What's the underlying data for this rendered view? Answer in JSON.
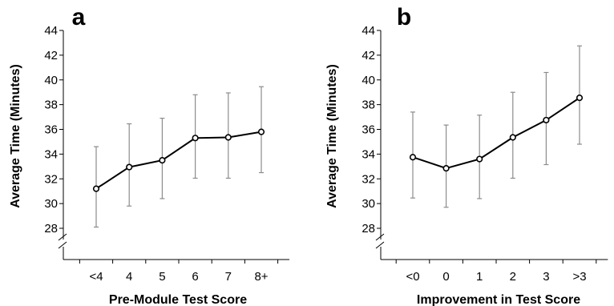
{
  "chart_data": [
    {
      "type": "line",
      "panel_label": "a",
      "categories": [
        "<4",
        "4",
        "5",
        "6",
        "7",
        "8+"
      ],
      "series": [
        {
          "values": [
            31.2,
            32.95,
            33.5,
            35.3,
            35.35,
            35.8
          ],
          "err_low": [
            28.1,
            29.8,
            30.4,
            32.05,
            32.05,
            32.5
          ],
          "err_high": [
            34.6,
            36.45,
            36.9,
            38.8,
            38.95,
            39.45
          ]
        }
      ],
      "xlabel": "Pre-Module Test Score",
      "ylabel": "Average Time (Minutes)",
      "yticks": [
        28,
        30,
        32,
        34,
        36,
        38,
        40,
        42,
        44
      ],
      "ylim": [
        28,
        44
      ],
      "axis_break": true,
      "grid": false
    },
    {
      "type": "line",
      "panel_label": "b",
      "categories": [
        "<0",
        "0",
        "1",
        "2",
        "3",
        ">3"
      ],
      "series": [
        {
          "values": [
            33.75,
            32.85,
            33.6,
            35.35,
            36.75,
            38.55
          ],
          "err_low": [
            30.45,
            29.7,
            30.4,
            32.05,
            33.15,
            34.8
          ],
          "err_high": [
            37.4,
            36.35,
            37.15,
            39.0,
            40.6,
            42.75
          ]
        }
      ],
      "xlabel": "Improvement in Test Score",
      "ylabel": "Average Time (Minutes)",
      "yticks": [
        28,
        30,
        32,
        34,
        36,
        38,
        40,
        42,
        44
      ],
      "ylim": [
        28,
        44
      ],
      "axis_break": true,
      "grid": false
    }
  ]
}
